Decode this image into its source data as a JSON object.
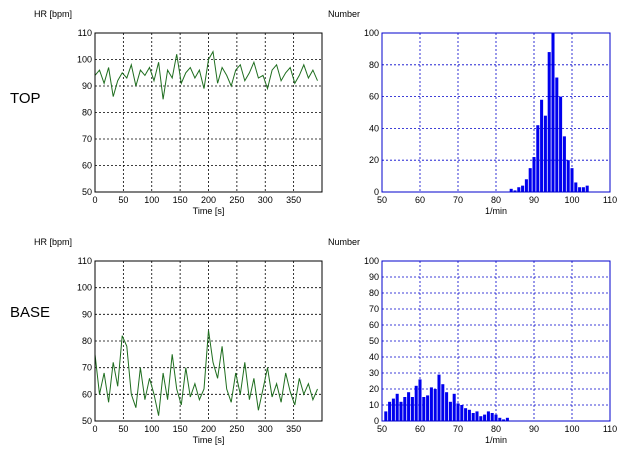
{
  "labels": {
    "top": "TOP",
    "base": "BASE"
  },
  "colors": {
    "hr_trace": "#1f6e1f",
    "histogram": "#0000ee",
    "hist_axis": "#0000cc",
    "hr_axis": "#000000"
  },
  "chart_data": [
    {
      "id": "top-hr",
      "type": "line",
      "title": "",
      "ylabel": "HR [bpm]",
      "xlabel": "Time [s]",
      "xlim": [
        0,
        400
      ],
      "ylim": [
        50,
        110
      ],
      "xticks": [
        0,
        50,
        100,
        150,
        200,
        250,
        300,
        350
      ],
      "yticks": [
        50,
        60,
        70,
        80,
        90,
        100,
        110
      ],
      "grid": true,
      "series": [
        {
          "x": [
            0,
            8,
            16,
            24,
            32,
            40,
            48,
            56,
            64,
            72,
            80,
            88,
            96,
            104,
            112,
            120,
            128,
            136,
            144,
            152,
            160,
            168,
            176,
            184,
            192,
            200,
            208,
            216,
            224,
            232,
            240,
            248,
            256,
            264,
            272,
            280,
            288,
            296,
            304,
            312,
            320,
            328,
            336,
            344,
            352,
            360,
            368,
            376,
            384,
            392
          ],
          "y": [
            94,
            96,
            91,
            97,
            86,
            92,
            95,
            93,
            98,
            90,
            96,
            94,
            97,
            92,
            99,
            85,
            96,
            93,
            102,
            91,
            95,
            97,
            93,
            96,
            89,
            100,
            103,
            91,
            97,
            94,
            90,
            96,
            98,
            92,
            95,
            99,
            93,
            94,
            89,
            96,
            98,
            92,
            95,
            97,
            91,
            94,
            98,
            93,
            96,
            92
          ]
        }
      ]
    },
    {
      "id": "top-hist",
      "type": "bar",
      "title": "",
      "ylabel": "Number",
      "xlabel": "1/min",
      "xlim": [
        50,
        110
      ],
      "ylim": [
        0,
        100
      ],
      "xticks": [
        50,
        60,
        70,
        80,
        90,
        100,
        110
      ],
      "yticks": [
        0,
        20,
        40,
        60,
        80,
        100
      ],
      "grid": true,
      "x": [
        84,
        85,
        86,
        87,
        88,
        89,
        90,
        91,
        92,
        93,
        94,
        95,
        96,
        97,
        98,
        99,
        100,
        101,
        102,
        103,
        104
      ],
      "values": [
        2,
        1,
        3,
        4,
        8,
        15,
        22,
        42,
        58,
        48,
        88,
        100,
        72,
        60,
        35,
        20,
        15,
        6,
        3,
        3,
        4
      ]
    },
    {
      "id": "base-hr",
      "type": "line",
      "title": "",
      "ylabel": "HR [bpm]",
      "xlabel": "Time [s]",
      "xlim": [
        0,
        400
      ],
      "ylim": [
        50,
        110
      ],
      "xticks": [
        0,
        50,
        100,
        150,
        200,
        250,
        300,
        350
      ],
      "yticks": [
        50,
        60,
        70,
        80,
        90,
        100,
        110
      ],
      "grid": true,
      "series": [
        {
          "x": [
            0,
            8,
            16,
            24,
            32,
            40,
            48,
            56,
            64,
            72,
            80,
            88,
            96,
            104,
            112,
            120,
            128,
            136,
            144,
            152,
            160,
            168,
            176,
            184,
            192,
            200,
            208,
            216,
            224,
            232,
            240,
            248,
            256,
            264,
            272,
            280,
            288,
            296,
            304,
            312,
            320,
            328,
            336,
            344,
            352,
            360,
            368,
            376,
            384,
            392
          ],
          "y": [
            75,
            60,
            68,
            57,
            72,
            63,
            82,
            78,
            60,
            55,
            70,
            58,
            66,
            60,
            52,
            68,
            58,
            75,
            62,
            56,
            70,
            59,
            64,
            58,
            62,
            84,
            72,
            66,
            78,
            62,
            57,
            68,
            60,
            72,
            58,
            66,
            54,
            62,
            70,
            59,
            64,
            57,
            68,
            61,
            56,
            66,
            60,
            64,
            58,
            62
          ]
        }
      ]
    },
    {
      "id": "base-hist",
      "type": "bar",
      "title": "",
      "ylabel": "Number",
      "xlabel": "1/min",
      "xlim": [
        50,
        110
      ],
      "ylim": [
        0,
        100
      ],
      "xticks": [
        50,
        60,
        70,
        80,
        90,
        100,
        110
      ],
      "yticks": [
        0,
        10,
        20,
        30,
        40,
        50,
        60,
        70,
        80,
        90,
        100
      ],
      "grid": true,
      "x": [
        51,
        52,
        53,
        54,
        55,
        56,
        57,
        58,
        59,
        60,
        61,
        62,
        63,
        64,
        65,
        66,
        67,
        68,
        69,
        70,
        71,
        72,
        73,
        74,
        75,
        76,
        77,
        78,
        79,
        80,
        81,
        82,
        83
      ],
      "values": [
        6,
        12,
        14,
        17,
        12,
        15,
        18,
        15,
        22,
        26,
        15,
        16,
        21,
        20,
        29,
        23,
        18,
        12,
        17,
        11,
        10,
        8,
        7,
        5,
        6,
        3,
        4,
        6,
        5,
        4,
        2,
        1,
        2
      ]
    }
  ]
}
